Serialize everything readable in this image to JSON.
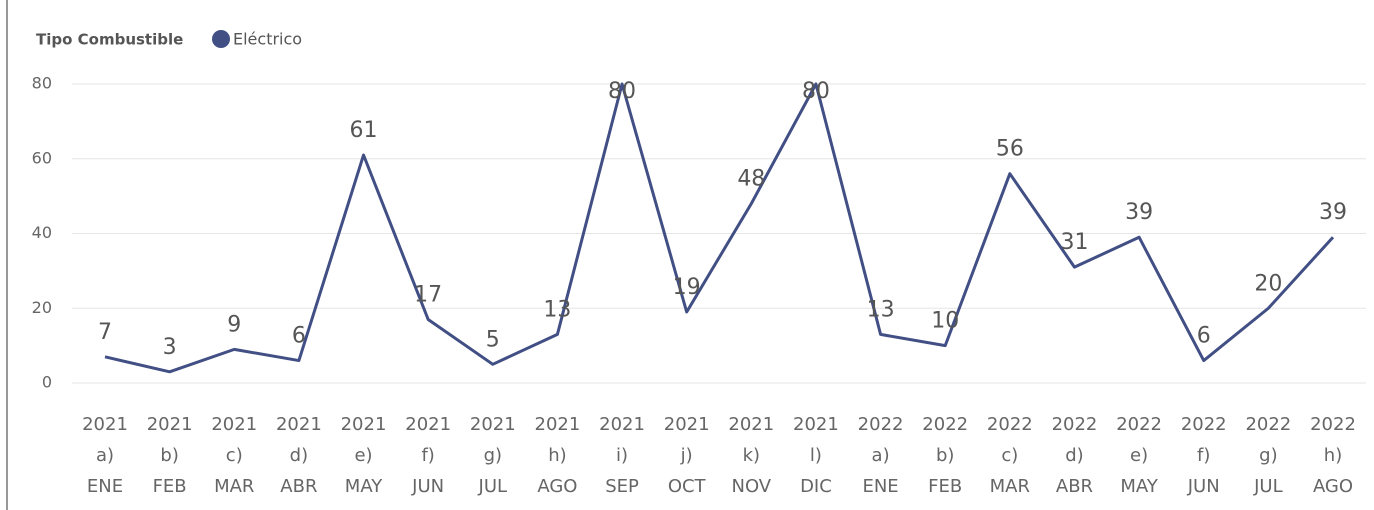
{
  "chart_data": {
    "type": "line",
    "legend_title": "Tipo Combustible",
    "categories": [
      [
        "2021",
        "a)",
        "ENE"
      ],
      [
        "2021",
        "b)",
        "FEB"
      ],
      [
        "2021",
        "c)",
        "MAR"
      ],
      [
        "2021",
        "d)",
        "ABR"
      ],
      [
        "2021",
        "e)",
        "MAY"
      ],
      [
        "2021",
        "f)",
        "JUN"
      ],
      [
        "2021",
        "g)",
        "JUL"
      ],
      [
        "2021",
        "h)",
        "AGO"
      ],
      [
        "2021",
        "i)",
        "SEP"
      ],
      [
        "2021",
        "j)",
        "OCT"
      ],
      [
        "2021",
        "k)",
        "NOV"
      ],
      [
        "2021",
        "l)",
        "DIC"
      ],
      [
        "2022",
        "a)",
        "ENE"
      ],
      [
        "2022",
        "b)",
        "FEB"
      ],
      [
        "2022",
        "c)",
        "MAR"
      ],
      [
        "2022",
        "d)",
        "ABR"
      ],
      [
        "2022",
        "e)",
        "MAY"
      ],
      [
        "2022",
        "f)",
        "JUN"
      ],
      [
        "2022",
        "g)",
        "JUL"
      ],
      [
        "2022",
        "h)",
        "AGO"
      ]
    ],
    "series": [
      {
        "name": "Eléctrico",
        "color": "#414f85",
        "values": [
          7,
          3,
          9,
          6,
          61,
          17,
          5,
          13,
          80,
          19,
          48,
          80,
          13,
          10,
          56,
          31,
          39,
          6,
          20,
          39
        ]
      }
    ],
    "ylim": [
      0,
      80
    ],
    "yticks": [
      0,
      20,
      40,
      60,
      80
    ],
    "grid": true,
    "data_labels": true
  }
}
